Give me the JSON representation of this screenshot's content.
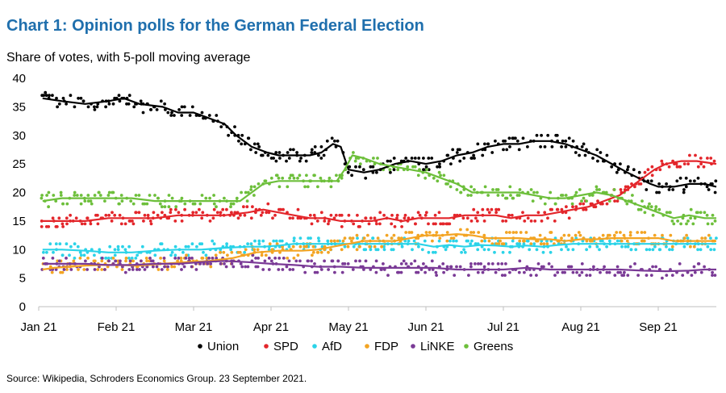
{
  "title": "Chart 1: Opinion polls for the German Federal Election",
  "subtitle": "Share of votes, with 5-poll moving average",
  "source": "Source: Wikipedia, Schroders Economics Group. 23 September 2021.",
  "chart_data": {
    "type": "line",
    "title": "Chart 1: Opinion polls for the German Federal Election",
    "ylabel": "Share of votes, with 5-poll moving average",
    "ylim": [
      0,
      40
    ],
    "yticks": [
      0,
      5,
      10,
      15,
      20,
      25,
      30,
      35,
      40
    ],
    "xlim": [
      0,
      8.75
    ],
    "xticks": [
      {
        "pos": 0,
        "label": "Jan 21"
      },
      {
        "pos": 1,
        "label": "Feb 21"
      },
      {
        "pos": 2,
        "label": "Mar 21"
      },
      {
        "pos": 3,
        "label": "Apr 21"
      },
      {
        "pos": 4,
        "label": "May 21"
      },
      {
        "pos": 5,
        "label": "Jun 21"
      },
      {
        "pos": 6,
        "label": "Jul 21"
      },
      {
        "pos": 7,
        "label": "Aug 21"
      },
      {
        "pos": 8,
        "label": "Sep 21"
      }
    ],
    "series": [
      {
        "name": "Union",
        "color": "#000000",
        "points": [
          [
            0.05,
            36.5
          ],
          [
            0.3,
            36
          ],
          [
            0.6,
            35.5
          ],
          [
            0.9,
            36
          ],
          [
            1.1,
            36.5
          ],
          [
            1.3,
            35.5
          ],
          [
            1.6,
            35
          ],
          [
            1.8,
            34
          ],
          [
            2.0,
            34
          ],
          [
            2.2,
            33
          ],
          [
            2.4,
            32
          ],
          [
            2.55,
            30
          ],
          [
            2.75,
            28
          ],
          [
            2.95,
            27
          ],
          [
            3.1,
            26.5
          ],
          [
            3.3,
            26.5
          ],
          [
            3.5,
            26.5
          ],
          [
            3.65,
            27
          ],
          [
            3.8,
            28.5
          ],
          [
            3.9,
            28
          ],
          [
            4.0,
            24
          ],
          [
            4.2,
            23.5
          ],
          [
            4.4,
            24
          ],
          [
            4.6,
            25
          ],
          [
            4.8,
            25.5
          ],
          [
            5.0,
            25
          ],
          [
            5.2,
            25.5
          ],
          [
            5.4,
            26.5
          ],
          [
            5.6,
            27
          ],
          [
            5.8,
            28
          ],
          [
            6.0,
            28.5
          ],
          [
            6.2,
            28.5
          ],
          [
            6.4,
            29
          ],
          [
            6.6,
            29
          ],
          [
            6.8,
            28.5
          ],
          [
            7.0,
            27.5
          ],
          [
            7.2,
            26.5
          ],
          [
            7.4,
            25
          ],
          [
            7.6,
            23.5
          ],
          [
            7.75,
            22.5
          ],
          [
            7.9,
            21.5
          ],
          [
            8.0,
            21
          ],
          [
            8.2,
            21
          ],
          [
            8.4,
            21.5
          ],
          [
            8.6,
            21.5
          ],
          [
            8.75,
            21
          ]
        ]
      },
      {
        "name": "SPD",
        "color": "#e3262b",
        "points": [
          [
            0.05,
            15
          ],
          [
            0.3,
            15
          ],
          [
            0.6,
            15
          ],
          [
            0.9,
            15.5
          ],
          [
            1.2,
            15.5
          ],
          [
            1.5,
            15.5
          ],
          [
            1.8,
            16
          ],
          [
            2.1,
            16
          ],
          [
            2.4,
            16
          ],
          [
            2.7,
            16.5
          ],
          [
            2.9,
            17
          ],
          [
            3.1,
            16.5
          ],
          [
            3.3,
            16
          ],
          [
            3.5,
            15.5
          ],
          [
            3.7,
            15.5
          ],
          [
            3.9,
            15
          ],
          [
            4.1,
            15
          ],
          [
            4.3,
            15
          ],
          [
            4.5,
            15.5
          ],
          [
            4.7,
            15
          ],
          [
            4.9,
            15.5
          ],
          [
            5.1,
            15.5
          ],
          [
            5.3,
            15.5
          ],
          [
            5.5,
            16
          ],
          [
            5.7,
            16
          ],
          [
            5.9,
            16
          ],
          [
            6.1,
            15.5
          ],
          [
            6.3,
            16
          ],
          [
            6.5,
            16
          ],
          [
            6.7,
            16.5
          ],
          [
            6.9,
            17
          ],
          [
            7.1,
            17.5
          ],
          [
            7.3,
            18.5
          ],
          [
            7.5,
            19.5
          ],
          [
            7.65,
            21
          ],
          [
            7.8,
            22.5
          ],
          [
            7.95,
            24
          ],
          [
            8.1,
            25
          ],
          [
            8.3,
            25.5
          ],
          [
            8.5,
            25.5
          ],
          [
            8.75,
            25
          ]
        ]
      },
      {
        "name": "AfD",
        "color": "#2bd3e8",
        "points": [
          [
            0.05,
            10
          ],
          [
            0.3,
            10
          ],
          [
            0.6,
            9.8
          ],
          [
            0.9,
            9.5
          ],
          [
            1.2,
            9.5
          ],
          [
            1.5,
            9.8
          ],
          [
            1.8,
            10
          ],
          [
            2.1,
            10
          ],
          [
            2.4,
            10.3
          ],
          [
            2.7,
            10.5
          ],
          [
            2.9,
            10.5
          ],
          [
            3.1,
            10.7
          ],
          [
            3.3,
            11
          ],
          [
            3.5,
            11
          ],
          [
            3.7,
            11
          ],
          [
            3.9,
            11
          ],
          [
            4.1,
            11
          ],
          [
            4.3,
            11
          ],
          [
            4.5,
            11
          ],
          [
            4.7,
            11
          ],
          [
            4.9,
            11
          ],
          [
            5.1,
            10.5
          ],
          [
            5.3,
            10.8
          ],
          [
            5.5,
            10.5
          ],
          [
            5.7,
            10.8
          ],
          [
            5.9,
            10.7
          ],
          [
            6.1,
            10.5
          ],
          [
            6.3,
            10.7
          ],
          [
            6.5,
            10.5
          ],
          [
            6.7,
            10.8
          ],
          [
            6.9,
            11
          ],
          [
            7.1,
            11
          ],
          [
            7.3,
            11
          ],
          [
            7.5,
            11
          ],
          [
            7.7,
            11
          ],
          [
            7.9,
            11
          ],
          [
            8.1,
            11
          ],
          [
            8.3,
            11
          ],
          [
            8.5,
            11
          ],
          [
            8.75,
            11
          ]
        ]
      },
      {
        "name": "FDP",
        "color": "#f3a423",
        "points": [
          [
            0.05,
            6.5
          ],
          [
            0.2,
            6.8
          ],
          [
            0.4,
            7
          ],
          [
            0.6,
            7.2
          ],
          [
            0.8,
            7.3
          ],
          [
            1.0,
            7.3
          ],
          [
            1.3,
            7.2
          ],
          [
            1.6,
            7.5
          ],
          [
            1.9,
            7.8
          ],
          [
            2.2,
            8
          ],
          [
            2.5,
            8.5
          ],
          [
            2.8,
            9.5
          ],
          [
            3.1,
            9.8
          ],
          [
            3.4,
            9.8
          ],
          [
            3.6,
            10
          ],
          [
            3.8,
            10.5
          ],
          [
            4.0,
            11
          ],
          [
            4.2,
            11.5
          ],
          [
            4.4,
            11.5
          ],
          [
            4.6,
            11.5
          ],
          [
            4.8,
            12
          ],
          [
            5.0,
            12.5
          ],
          [
            5.2,
            12.5
          ],
          [
            5.4,
            12.7
          ],
          [
            5.6,
            12.5
          ],
          [
            5.8,
            12
          ],
          [
            6.0,
            12
          ],
          [
            6.2,
            12
          ],
          [
            6.4,
            11.8
          ],
          [
            6.6,
            11.8
          ],
          [
            6.8,
            11.5
          ],
          [
            7.0,
            11.8
          ],
          [
            7.2,
            11.8
          ],
          [
            7.4,
            12
          ],
          [
            7.6,
            12
          ],
          [
            7.8,
            12
          ],
          [
            8.0,
            12
          ],
          [
            8.2,
            11.5
          ],
          [
            8.4,
            11.5
          ],
          [
            8.6,
            11.5
          ],
          [
            8.75,
            11.5
          ]
        ]
      },
      {
        "name": "LiNKE",
        "color": "#7a3a96",
        "points": [
          [
            0.05,
            7.5
          ],
          [
            0.3,
            7.5
          ],
          [
            0.6,
            7.5
          ],
          [
            0.9,
            7.3
          ],
          [
            1.2,
            7.3
          ],
          [
            1.5,
            7.5
          ],
          [
            1.8,
            7.5
          ],
          [
            2.1,
            7.8
          ],
          [
            2.4,
            8
          ],
          [
            2.7,
            7.8
          ],
          [
            3.0,
            7.5
          ],
          [
            3.3,
            7.3
          ],
          [
            3.6,
            7
          ],
          [
            3.9,
            7
          ],
          [
            4.2,
            6.8
          ],
          [
            4.5,
            6.8
          ],
          [
            4.8,
            6.8
          ],
          [
            5.1,
            6.8
          ],
          [
            5.4,
            6.5
          ],
          [
            5.7,
            6.5
          ],
          [
            6.0,
            6.5
          ],
          [
            6.3,
            6.8
          ],
          [
            6.6,
            6.5
          ],
          [
            6.9,
            6.5
          ],
          [
            7.2,
            6.5
          ],
          [
            7.5,
            6.5
          ],
          [
            7.8,
            6.3
          ],
          [
            8.1,
            6.2
          ],
          [
            8.4,
            6.3
          ],
          [
            8.6,
            6.5
          ],
          [
            8.75,
            6.5
          ]
        ]
      },
      {
        "name": "Greens",
        "color": "#6dbf3b",
        "points": [
          [
            0.05,
            18.5
          ],
          [
            0.3,
            19
          ],
          [
            0.6,
            19
          ],
          [
            0.9,
            19
          ],
          [
            1.2,
            19
          ],
          [
            1.5,
            18.5
          ],
          [
            1.8,
            18.5
          ],
          [
            2.1,
            18.5
          ],
          [
            2.4,
            18.5
          ],
          [
            2.6,
            18.5
          ],
          [
            2.75,
            20
          ],
          [
            2.9,
            21.5
          ],
          [
            3.1,
            22
          ],
          [
            3.3,
            22
          ],
          [
            3.5,
            22
          ],
          [
            3.7,
            22
          ],
          [
            3.85,
            22
          ],
          [
            3.95,
            24
          ],
          [
            4.05,
            26.5
          ],
          [
            4.2,
            26
          ],
          [
            4.4,
            25
          ],
          [
            4.6,
            24.5
          ],
          [
            4.8,
            24
          ],
          [
            5.0,
            23.5
          ],
          [
            5.2,
            22.5
          ],
          [
            5.4,
            21.5
          ],
          [
            5.6,
            20
          ],
          [
            5.8,
            20
          ],
          [
            6.0,
            20
          ],
          [
            6.2,
            20
          ],
          [
            6.4,
            19.5
          ],
          [
            6.6,
            19
          ],
          [
            6.8,
            19
          ],
          [
            7.0,
            19.5
          ],
          [
            7.2,
            20
          ],
          [
            7.4,
            19.5
          ],
          [
            7.6,
            18.5
          ],
          [
            7.8,
            17.5
          ],
          [
            8.0,
            16.5
          ],
          [
            8.2,
            15.5
          ],
          [
            8.4,
            16
          ],
          [
            8.6,
            15.5
          ],
          [
            8.75,
            15.5
          ]
        ]
      }
    ],
    "legend": [
      "Union",
      "SPD",
      "AfD",
      "FDP",
      "LiNKE",
      "Greens"
    ],
    "legend_position": "bottom",
    "grid": false
  }
}
